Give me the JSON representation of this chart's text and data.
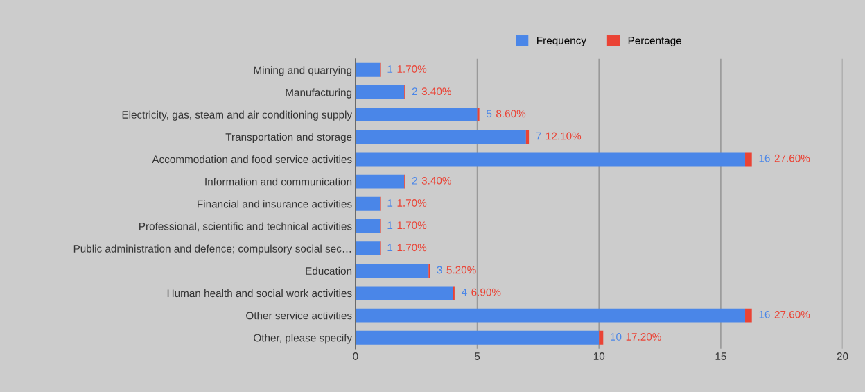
{
  "chart_data": {
    "type": "bar",
    "orientation": "horizontal",
    "stacked": true,
    "categories": [
      "Mining and quarrying",
      "Manufacturing",
      "Electricity, gas, steam and air conditioning supply",
      "Transportation and storage",
      "Accommodation and food service activities",
      "Information and communication",
      "Financial and insurance activities",
      "Professional, scientific and technical activities",
      "Public administration and defence; compulsory social sec…",
      "Education",
      "Human health and social work activities",
      "Other service activities",
      "Other, please specify"
    ],
    "series": [
      {
        "name": "Frequency",
        "color": "#4a86e8",
        "values": [
          1,
          2,
          5,
          7,
          16,
          2,
          1,
          1,
          1,
          3,
          4,
          16,
          10
        ],
        "value_labels": [
          "1",
          "2",
          "5",
          "7",
          "16",
          "2",
          "1",
          "1",
          "1",
          "3",
          "4",
          "16",
          "10"
        ]
      },
      {
        "name": "Percentage",
        "color": "#ea4335",
        "values": [
          0.017,
          0.034,
          0.086,
          0.121,
          0.276,
          0.034,
          0.017,
          0.017,
          0.017,
          0.052,
          0.069,
          0.276,
          0.172
        ],
        "value_labels": [
          "1.70%",
          "3.40%",
          "8.60%",
          "12.10%",
          "27.60%",
          "3.40%",
          "1.70%",
          "1.70%",
          "1.70%",
          "5.20%",
          "6.90%",
          "27.60%",
          "17.20%"
        ]
      }
    ],
    "xlim": [
      0,
      20
    ],
    "xticks": [
      0,
      5,
      10,
      15,
      20
    ],
    "grid": "x",
    "legend": "top"
  }
}
